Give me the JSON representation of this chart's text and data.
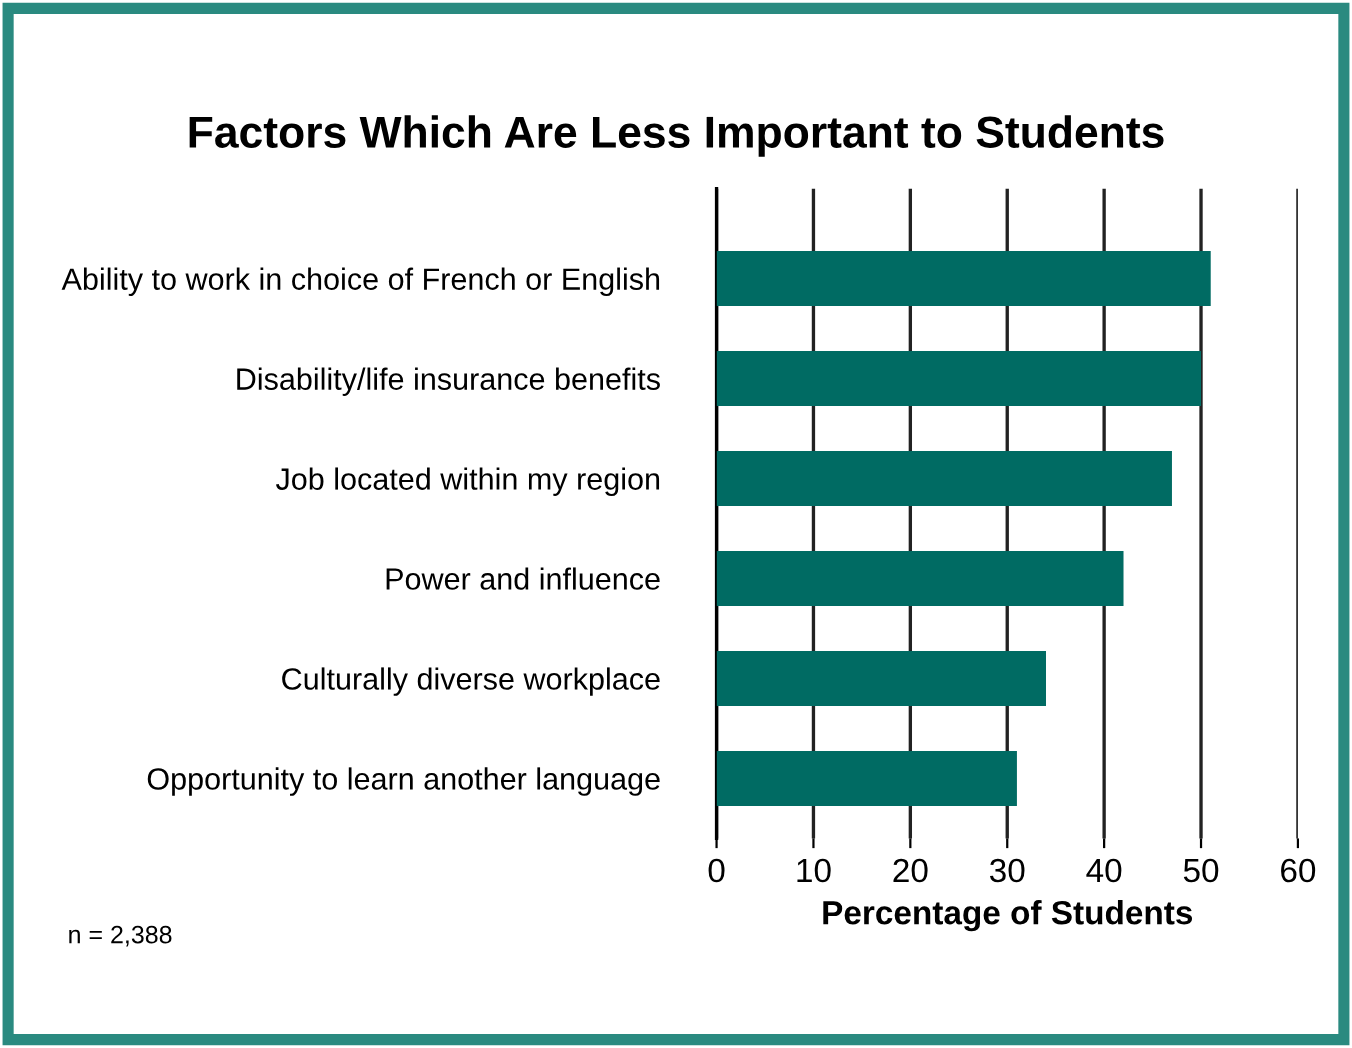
{
  "chart_data": {
    "type": "bar",
    "orientation": "horizontal",
    "title": "Factors Which Are Less Important to Students",
    "categories": [
      "Ability to work in choice of French or English",
      "Disability/life insurance benefits",
      "Job located within my region",
      "Power and influence",
      "Culturally diverse workplace",
      "Opportunity to learn another language"
    ],
    "values": [
      51,
      50,
      47,
      42,
      34,
      31
    ],
    "color": "#006b63",
    "xlim": [
      0,
      60
    ],
    "xticks": [
      0,
      10,
      20,
      30,
      40,
      50,
      60
    ],
    "grid": "x",
    "xlabel": "Percentage of Students",
    "annotations": [
      "n = 2,388"
    ]
  }
}
